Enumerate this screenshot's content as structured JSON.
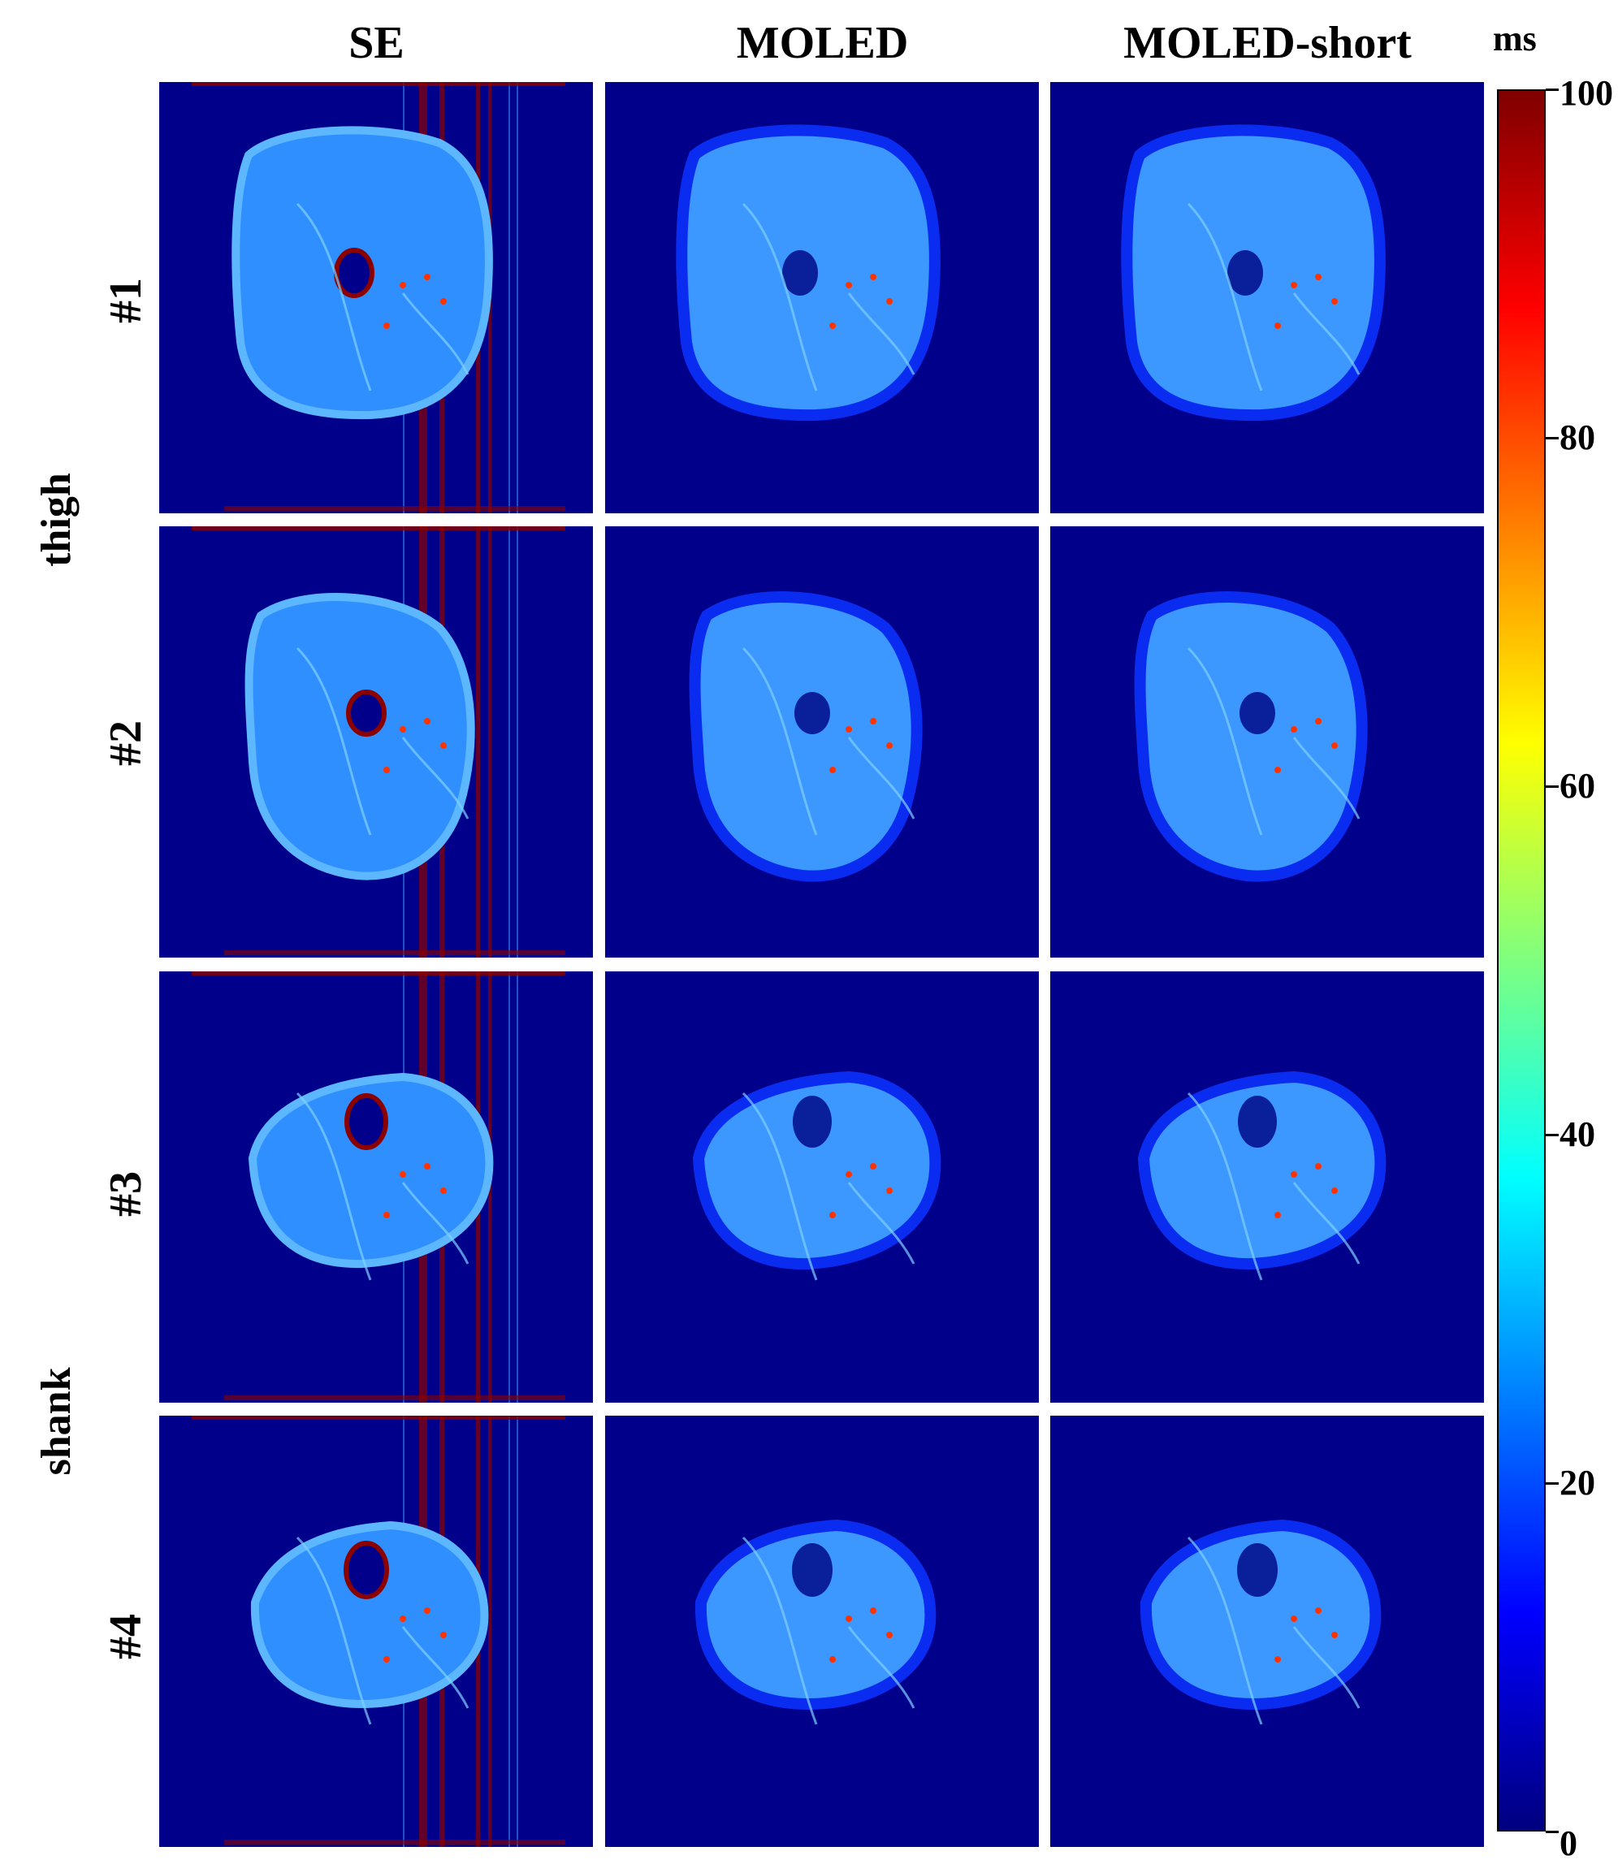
{
  "columns": [
    "SE",
    "MOLED",
    "MOLED-short"
  ],
  "rows": [
    "#1",
    "#2",
    "#3",
    "#4"
  ],
  "groups": [
    "thigh",
    "shank"
  ],
  "colorbar": {
    "unit": "ms",
    "min": 0,
    "max": 100,
    "ticks": [
      "0",
      "20",
      "40",
      "60",
      "80",
      "100"
    ],
    "tick_values": [
      0,
      20,
      40,
      60,
      80,
      100
    ]
  },
  "colors": {
    "background": "#00008a",
    "tissue": "#2f8fff",
    "tissue_light": "#5cb7ff",
    "edge": "#0a2cf0",
    "artifact": "#8b0000",
    "hot": "#ff3300"
  }
}
